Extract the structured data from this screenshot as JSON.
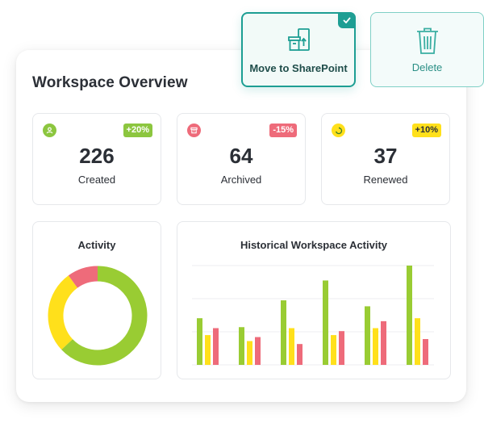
{
  "page": {
    "title": "Workspace Overview"
  },
  "actions": {
    "move": {
      "label": "Move to SharePoint",
      "icon": "move-to-sharepoint-icon",
      "selected": true
    },
    "delete": {
      "label": "Delete",
      "icon": "trash-icon"
    }
  },
  "stats": [
    {
      "value": "226",
      "label": "Created",
      "change": "+20%",
      "icon": "user-icon",
      "icon_color": "#8cc63f",
      "badge_bg": "#8cc63f",
      "badge_fg": "#ffffff"
    },
    {
      "value": "64",
      "label": "Archived",
      "change": "-15%",
      "icon": "archive-icon",
      "icon_color": "#ee6b7a",
      "badge_bg": "#ee6b7a",
      "badge_fg": "#ffffff"
    },
    {
      "value": "37",
      "label": "Renewed",
      "change": "+10%",
      "icon": "recycle-icon",
      "icon_color": "#ffe01b",
      "badge_bg": "#ffe01b",
      "badge_fg": "#2b2f36"
    }
  ],
  "colors": {
    "green": "#99cc33",
    "yellow": "#ffe01b",
    "red": "#ee6b7a",
    "accent": "#1d9e93"
  },
  "activity": {
    "title": "Activity",
    "chart_data": {
      "type": "pie",
      "title": "Activity",
      "donut": true,
      "slices": [
        {
          "color": "#99cc33",
          "value": 63
        },
        {
          "color": "#ffe01b",
          "value": 27
        },
        {
          "color": "#ee6b7a",
          "value": 10
        }
      ]
    }
  },
  "history": {
    "title": "Historical Workspace Activity",
    "chart_data": {
      "type": "bar",
      "title": "Historical Workspace Activity",
      "grid": true,
      "ylim": [
        0,
        100
      ],
      "series": [
        {
          "color": "#99cc33",
          "values": [
            47,
            38,
            65,
            85,
            59,
            100
          ]
        },
        {
          "color": "#ffe01b",
          "values": [
            30,
            24,
            37,
            30,
            37,
            47
          ]
        },
        {
          "color": "#ee6b7a",
          "values": [
            37,
            28,
            21,
            34,
            44,
            26
          ]
        }
      ]
    }
  }
}
